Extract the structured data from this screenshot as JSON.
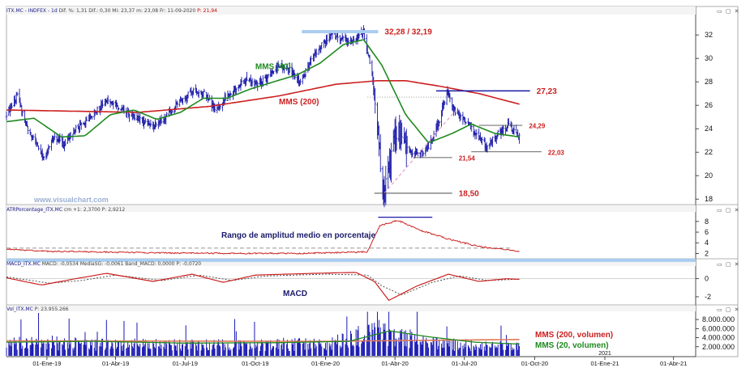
{
  "headers": {
    "price": {
      "name": "ITX.MC - INDFEX - 1d",
      "values": "Dif. %: 1,31  Dif.: 0,30  Mi: 23,37  m: 23,08  Fr: 11-09-2020",
      "last": "P: 21,94"
    },
    "atr": {
      "name": "ATRPorcentage_ITX.MC",
      "values": "cm +1: 2,3700  P: 2,9212"
    },
    "macd": {
      "name": "MACD_ITX.MC",
      "values": "MACD: -0,0534  MediaSG: -0,0061  Band_MACD: 0,0000  P: -0,0720"
    },
    "vol": {
      "name": "Vol_ITX.MC",
      "values": "P: 23.955.266"
    }
  },
  "window_buttons": "▭ ▢ ✕",
  "watermark": "www.visualchart.com",
  "colors": {
    "price": "#1a1aa8",
    "mms40": "#1f8a1f",
    "mms200": "#cc1f1f",
    "annot": "#cc1f1f",
    "blue_band": "#a9cdf0",
    "volume": "#1a1ab4",
    "vol_ma200": "#e07a55",
    "vol_ma20": "#1f8a1f"
  },
  "chart_data": [
    {
      "type": "ohlc",
      "title": "",
      "price_ylim": [
        17.6,
        33.6
      ],
      "y_ticks": [
        18,
        20,
        22,
        24,
        26,
        28,
        30,
        32
      ],
      "x_range": [
        "2018-11-09",
        "2021-04-30"
      ],
      "x_ticks": [
        "01-Ene-19",
        "01-Abr-19",
        "01-Jul-19",
        "01-Oct-19",
        "01-Ene-20",
        "01-Abr-20",
        "01-Jul-20",
        "01-Oct-20",
        "01-Ene-21",
        "01-Abr-21"
      ],
      "x_tick_dates": [
        "2019-01-01",
        "2019-04-01",
        "2019-07-01",
        "2019-10-01",
        "2020-01-01",
        "2020-04-01",
        "2020-07-01",
        "2020-10-01",
        "2021-01-01",
        "2021-04-01"
      ],
      "price_path": [
        [
          "2018-11-09",
          25.2
        ],
        [
          "2018-11-23",
          26.8
        ],
        [
          "2018-12-07",
          24.0
        ],
        [
          "2018-12-17",
          22.8
        ],
        [
          "2018-12-27",
          21.6
        ],
        [
          "2019-01-10",
          23.2
        ],
        [
          "2019-01-24",
          22.6
        ],
        [
          "2019-02-07",
          24.0
        ],
        [
          "2019-02-21",
          24.6
        ],
        [
          "2019-03-08",
          25.6
        ],
        [
          "2019-03-22",
          26.4
        ],
        [
          "2019-04-05",
          25.8
        ],
        [
          "2019-04-19",
          25.2
        ],
        [
          "2019-05-03",
          24.8
        ],
        [
          "2019-05-17",
          24.2
        ],
        [
          "2019-05-31",
          24.6
        ],
        [
          "2019-06-14",
          25.6
        ],
        [
          "2019-06-28",
          26.6
        ],
        [
          "2019-07-12",
          27.2
        ],
        [
          "2019-07-26",
          27.0
        ],
        [
          "2019-08-09",
          25.6
        ],
        [
          "2019-08-23",
          26.6
        ],
        [
          "2019-09-06",
          27.6
        ],
        [
          "2019-09-20",
          28.2
        ],
        [
          "2019-10-04",
          27.8
        ],
        [
          "2019-10-18",
          28.4
        ],
        [
          "2019-11-01",
          29.4
        ],
        [
          "2019-11-15",
          29.0
        ],
        [
          "2019-11-29",
          28.0
        ],
        [
          "2019-12-13",
          29.8
        ],
        [
          "2019-12-27",
          31.2
        ],
        [
          "2020-01-10",
          32.0
        ],
        [
          "2020-01-24",
          31.6
        ],
        [
          "2020-02-07",
          31.6
        ],
        [
          "2020-02-20",
          32.2
        ],
        [
          "2020-03-02",
          28.6
        ],
        [
          "2020-03-10",
          24.0
        ],
        [
          "2020-03-16",
          18.5
        ],
        [
          "2020-03-24",
          21.0
        ],
        [
          "2020-04-03",
          23.6
        ],
        [
          "2020-04-17",
          22.2
        ],
        [
          "2020-05-01",
          21.8
        ],
        [
          "2020-05-15",
          22.4
        ],
        [
          "2020-05-29",
          24.6
        ],
        [
          "2020-06-08",
          27.23
        ],
        [
          "2020-06-19",
          25.4
        ],
        [
          "2020-07-03",
          24.6
        ],
        [
          "2020-07-17",
          23.4
        ],
        [
          "2020-07-31",
          22.5
        ],
        [
          "2020-08-14",
          23.6
        ],
        [
          "2020-08-28",
          24.29
        ],
        [
          "2020-09-11",
          23.37
        ]
      ],
      "mms40": [
        [
          "2018-11-09",
          24.6
        ],
        [
          "2018-12-15",
          24.9
        ],
        [
          "2019-01-20",
          23.3
        ],
        [
          "2019-02-20",
          23.4
        ],
        [
          "2019-03-25",
          25.2
        ],
        [
          "2019-04-25",
          25.6
        ],
        [
          "2019-05-25",
          24.8
        ],
        [
          "2019-06-25",
          25.4
        ],
        [
          "2019-07-25",
          26.6
        ],
        [
          "2019-08-25",
          26.6
        ],
        [
          "2019-09-25",
          27.4
        ],
        [
          "2019-10-25",
          28.0
        ],
        [
          "2019-11-25",
          28.6
        ],
        [
          "2019-12-25",
          29.6
        ],
        [
          "2020-01-25",
          31.2
        ],
        [
          "2020-02-20",
          31.6
        ],
        [
          "2020-03-15",
          29.4
        ],
        [
          "2020-04-15",
          25.2
        ],
        [
          "2020-05-15",
          22.8
        ],
        [
          "2020-06-15",
          23.6
        ],
        [
          "2020-07-10",
          24.4
        ],
        [
          "2020-08-10",
          23.6
        ],
        [
          "2020-09-11",
          23.3
        ]
      ],
      "mms200": [
        [
          "2018-11-09",
          25.6
        ],
        [
          "2019-02-01",
          25.5
        ],
        [
          "2019-05-01",
          25.4
        ],
        [
          "2019-08-01",
          25.9
        ],
        [
          "2019-11-01",
          26.8
        ],
        [
          "2020-01-15",
          27.8
        ],
        [
          "2020-03-10",
          28.1
        ],
        [
          "2020-04-15",
          28.1
        ],
        [
          "2020-06-01",
          27.6
        ],
        [
          "2020-07-20",
          27.0
        ],
        [
          "2020-09-11",
          26.1
        ]
      ],
      "annotations": [
        {
          "label": "32,28 / 32,19",
          "value": 32.28,
          "from": "2019-12-01",
          "to": "2020-03-10",
          "style": "band"
        },
        {
          "label": "27,23",
          "value": 27.23,
          "from": "2020-05-25",
          "to": "2020-09-25",
          "style": "line"
        },
        {
          "label": "24,29",
          "value": 24.29,
          "from": "2020-07-20",
          "to": "2020-09-15",
          "style": "thin"
        },
        {
          "label": "22,03",
          "value": 22.03,
          "from": "2020-07-10",
          "to": "2020-10-10",
          "style": "thin"
        },
        {
          "label": "21,54",
          "value": 21.54,
          "from": "2020-04-25",
          "to": "2020-06-15",
          "style": "thin"
        },
        {
          "label": "18,50",
          "value": 18.5,
          "from": "2020-03-05",
          "to": "2020-06-15",
          "style": "thin"
        }
      ],
      "series_labels": [
        {
          "label": "MMS (40)",
          "date": "2019-10-01",
          "value": 29.1,
          "color": "#1f8a1f"
        },
        {
          "label": "MMS (200)",
          "date": "2019-11-01",
          "value": 26.1,
          "color": "#cc1f1f"
        }
      ]
    },
    {
      "type": "line",
      "title": "Rango de amplitud medio en porcentaje",
      "ylim": [
        1.0,
        9.8
      ],
      "y_ticks": [
        2,
        4,
        6,
        8
      ],
      "reference_level": 3.0,
      "values": [
        [
          "2018-11-09",
          2.8
        ],
        [
          "2019-01-01",
          2.4
        ],
        [
          "2019-03-01",
          2.3
        ],
        [
          "2019-06-01",
          2.1
        ],
        [
          "2019-09-01",
          2.0
        ],
        [
          "2019-12-01",
          2.0
        ],
        [
          "2020-02-25",
          2.3
        ],
        [
          "2020-03-12",
          7.2
        ],
        [
          "2020-04-05",
          8.2
        ],
        [
          "2020-05-05",
          6.3
        ],
        [
          "2020-06-15",
          4.5
        ],
        [
          "2020-07-20",
          3.3
        ],
        [
          "2020-09-11",
          2.4
        ]
      ]
    },
    {
      "type": "line",
      "title": "MACD",
      "ylim": [
        -2.9,
        1.4
      ],
      "y_ticks": [
        0,
        -2
      ],
      "macd": [
        [
          "2018-11-09",
          0.1
        ],
        [
          "2018-12-25",
          -0.7
        ],
        [
          "2019-02-01",
          -0.1
        ],
        [
          "2019-03-20",
          0.6
        ],
        [
          "2019-05-20",
          -0.3
        ],
        [
          "2019-07-10",
          0.5
        ],
        [
          "2019-08-20",
          -0.4
        ],
        [
          "2019-10-01",
          0.4
        ],
        [
          "2019-12-20",
          0.6
        ],
        [
          "2020-02-10",
          0.7
        ],
        [
          "2020-03-05",
          -0.3
        ],
        [
          "2020-03-24",
          -2.4
        ],
        [
          "2020-04-30",
          -0.8
        ],
        [
          "2020-06-10",
          0.5
        ],
        [
          "2020-07-20",
          -0.3
        ],
        [
          "2020-08-25",
          0.0
        ],
        [
          "2020-09-11",
          -0.07
        ]
      ],
      "signal": [
        [
          "2018-11-09",
          0.2
        ],
        [
          "2019-01-05",
          -0.5
        ],
        [
          "2019-02-15",
          -0.2
        ],
        [
          "2019-04-01",
          0.4
        ],
        [
          "2019-06-01",
          -0.2
        ],
        [
          "2019-07-20",
          0.4
        ],
        [
          "2019-09-01",
          -0.2
        ],
        [
          "2019-10-15",
          0.3
        ],
        [
          "2020-01-01",
          0.5
        ],
        [
          "2020-02-25",
          0.4
        ],
        [
          "2020-03-15",
          -0.8
        ],
        [
          "2020-04-10",
          -1.8
        ],
        [
          "2020-05-20",
          -0.4
        ],
        [
          "2020-06-25",
          0.3
        ],
        [
          "2020-08-01",
          -0.2
        ],
        [
          "2020-09-11",
          -0.05
        ]
      ]
    },
    {
      "type": "bar",
      "title": "",
      "ylim": [
        0,
        9800000
      ],
      "y_ticks": [
        2000000,
        4000000,
        6000000,
        8000000
      ],
      "y_tick_labels": [
        "2.000.000",
        "4.000.000",
        "6.000.000",
        "8.000.000"
      ],
      "volume_profile": [
        [
          "2018-11-09",
          3100000
        ],
        [
          "2019-01-01",
          3500000
        ],
        [
          "2019-04-01",
          2900000
        ],
        [
          "2019-07-01",
          2700000
        ],
        [
          "2019-10-01",
          2900000
        ],
        [
          "2020-01-01",
          3100000
        ],
        [
          "2020-03-15",
          6200000
        ],
        [
          "2020-05-01",
          4000000
        ],
        [
          "2020-07-01",
          2800000
        ],
        [
          "2020-09-11",
          2400000
        ]
      ],
      "vol_ma200": [
        [
          "2018-11-09",
          3300000
        ],
        [
          "2020-01-01",
          3200000
        ],
        [
          "2020-09-11",
          3600000
        ]
      ],
      "vol_ma20": [
        [
          "2018-11-09",
          3000000
        ],
        [
          "2019-03-01",
          3200000
        ],
        [
          "2019-07-01",
          2800000
        ],
        [
          "2019-11-01",
          2900000
        ],
        [
          "2020-02-01",
          3200000
        ],
        [
          "2020-03-25",
          5500000
        ],
        [
          "2020-05-15",
          4200000
        ],
        [
          "2020-07-15",
          3000000
        ],
        [
          "2020-09-11",
          2600000
        ]
      ],
      "legend": [
        {
          "label": "MMS (200, volumen)",
          "color": "#cc1f1f"
        },
        {
          "label": "MMS (20, volumen)",
          "color": "#1f8a1f"
        }
      ],
      "year_label": "2021"
    }
  ]
}
